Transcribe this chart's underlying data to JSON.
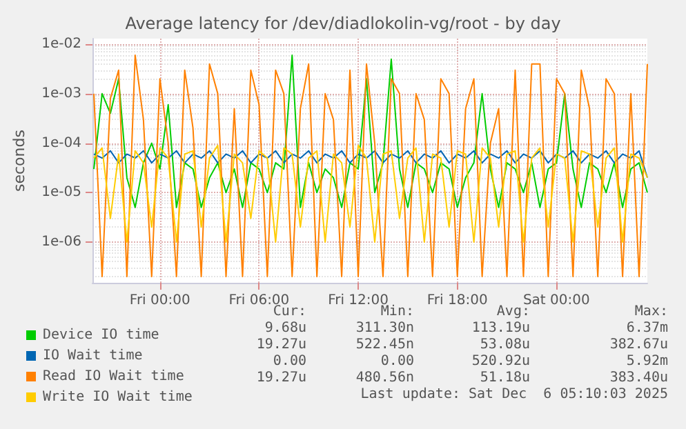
{
  "chart_data": {
    "type": "line",
    "title": "Average latency for /dev/diadlokolin-vg/root - by day",
    "ylabel": "seconds",
    "log": "y",
    "grid": true,
    "legend": "bottom",
    "marker": "none",
    "line_style": "solid",
    "x": [
      "2025-12-04T20:00",
      "2025-12-04T20:30",
      "2025-12-04T21:00",
      "2025-12-04T21:30",
      "2025-12-04T22:00",
      "2025-12-04T22:30",
      "2025-12-04T23:00",
      "2025-12-04T23:30",
      "2025-12-05T00:00",
      "2025-12-05T00:30",
      "2025-12-05T01:00",
      "2025-12-05T01:30",
      "2025-12-05T02:00",
      "2025-12-05T02:30",
      "2025-12-05T03:00",
      "2025-12-05T03:30",
      "2025-12-05T04:00",
      "2025-12-05T04:30",
      "2025-12-05T05:00",
      "2025-12-05T05:30",
      "2025-12-05T06:00",
      "2025-12-05T06:30",
      "2025-12-05T07:00",
      "2025-12-05T07:30",
      "2025-12-05T08:00",
      "2025-12-05T08:30",
      "2025-12-05T09:00",
      "2025-12-05T09:30",
      "2025-12-05T10:00",
      "2025-12-05T10:30",
      "2025-12-05T11:00",
      "2025-12-05T11:30",
      "2025-12-05T12:00",
      "2025-12-05T12:30",
      "2025-12-05T13:00",
      "2025-12-05T13:30",
      "2025-12-05T14:00",
      "2025-12-05T14:30",
      "2025-12-05T15:00",
      "2025-12-05T15:30",
      "2025-12-05T16:00",
      "2025-12-05T16:30",
      "2025-12-05T17:00",
      "2025-12-05T17:30",
      "2025-12-05T18:00",
      "2025-12-05T18:30",
      "2025-12-05T19:00",
      "2025-12-05T19:30",
      "2025-12-05T20:00",
      "2025-12-05T20:30",
      "2025-12-05T21:00",
      "2025-12-05T21:30",
      "2025-12-05T22:00",
      "2025-12-05T22:30",
      "2025-12-05T23:00",
      "2025-12-05T23:30",
      "2025-12-06T00:00",
      "2025-12-06T00:30",
      "2025-12-06T01:00",
      "2025-12-06T01:30",
      "2025-12-06T02:00",
      "2025-12-06T02:30",
      "2025-12-06T03:00",
      "2025-12-06T03:30",
      "2025-12-06T04:00",
      "2025-12-06T04:30",
      "2025-12-06T05:00",
      "2025-12-06T05:30"
    ],
    "xlim": [
      "2025-12-04T19:55",
      "2025-12-06T05:30"
    ],
    "xticks": [
      {
        "value": "2025-12-05T00:00",
        "label": "Fri 00:00"
      },
      {
        "value": "2025-12-05T06:00",
        "label": "Fri 06:00"
      },
      {
        "value": "2025-12-05T12:00",
        "label": "Fri 12:00"
      },
      {
        "value": "2025-12-05T18:00",
        "label": "Fri 18:00"
      },
      {
        "value": "2025-12-06T00:00",
        "label": "Sat 00:00"
      }
    ],
    "ylim": [
      1.5e-07,
      0.013
    ],
    "yticks": [
      {
        "value": 1e-06,
        "label": "1e-06"
      },
      {
        "value": 1e-05,
        "label": "1e-05"
      },
      {
        "value": 0.0001,
        "label": "1e-04"
      },
      {
        "value": 0.001,
        "label": "1e-03"
      },
      {
        "value": 0.01,
        "label": "1e-02"
      }
    ],
    "series": [
      {
        "name": "Device IO time",
        "color": "#00cc00",
        "values": [
          3e-05,
          0.001,
          0.0004,
          0.002,
          2e-05,
          5e-06,
          4e-05,
          0.0001,
          3e-05,
          0.0006,
          5e-06,
          4e-05,
          3e-05,
          5e-06,
          2e-05,
          4e-05,
          1e-05,
          3e-05,
          5e-06,
          4e-05,
          3e-05,
          1e-05,
          4e-05,
          3e-05,
          0.006,
          5e-06,
          4e-05,
          1e-05,
          3e-05,
          2e-05,
          5e-06,
          4e-05,
          3e-05,
          0.002,
          1e-05,
          4e-05,
          0.005,
          3e-05,
          5e-06,
          4e-05,
          3e-05,
          1e-05,
          4e-05,
          3e-05,
          5e-06,
          2e-05,
          4e-05,
          0.001,
          3e-05,
          5e-06,
          4e-05,
          3e-05,
          1e-05,
          4e-05,
          5e-06,
          3e-05,
          4e-05,
          0.001,
          3e-05,
          5e-06,
          4e-05,
          3e-05,
          1e-05,
          4e-05,
          5e-06,
          3e-05,
          4e-05,
          1e-05
        ]
      },
      {
        "name": "IO Wait time",
        "color": "#0066b3",
        "values": [
          6e-05,
          5e-05,
          7e-05,
          4e-05,
          6e-05,
          5e-05,
          7e-05,
          4e-05,
          6e-05,
          5e-05,
          7e-05,
          4e-05,
          6e-05,
          5e-05,
          7e-05,
          4e-05,
          6e-05,
          5e-05,
          7e-05,
          4e-05,
          6e-05,
          5e-05,
          7e-05,
          4e-05,
          6e-05,
          5e-05,
          7e-05,
          4e-05,
          6e-05,
          5e-05,
          7e-05,
          4e-05,
          6e-05,
          5e-05,
          7e-05,
          4e-05,
          6e-05,
          5e-05,
          7e-05,
          4e-05,
          6e-05,
          5e-05,
          7e-05,
          4e-05,
          6e-05,
          5e-05,
          7e-05,
          4e-05,
          6e-05,
          5e-05,
          7e-05,
          4e-05,
          6e-05,
          5e-05,
          7e-05,
          4e-05,
          6e-05,
          5e-05,
          7e-05,
          4e-05,
          6e-05,
          5e-05,
          7e-05,
          4e-05,
          6e-05,
          5e-05,
          7e-05,
          2e-05
        ]
      },
      {
        "name": "Read IO Wait time",
        "color": "#ff8000",
        "values": [
          0.001,
          2e-07,
          0.0008,
          0.003,
          2e-07,
          0.006,
          0.0003,
          2e-07,
          0.002,
          0.0001,
          2e-07,
          0.003,
          0.0002,
          2e-07,
          0.004,
          0.001,
          2e-07,
          0.0005,
          2e-07,
          0.003,
          0.0006,
          2e-07,
          0.003,
          0.001,
          2e-07,
          0.0005,
          0.004,
          2e-07,
          0.001,
          0.0003,
          2e-07,
          0.003,
          2e-07,
          0.004,
          0.0001,
          2e-07,
          0.002,
          0.001,
          2e-07,
          0.001,
          0.0003,
          2e-07,
          0.002,
          0.001,
          2e-07,
          0.0005,
          0.002,
          2e-07,
          0.0001,
          0.0005,
          2e-07,
          0.003,
          2e-07,
          0.004,
          0.004,
          2e-07,
          0.002,
          0.001,
          2e-07,
          0.003,
          0.0005,
          2e-07,
          0.002,
          0.001,
          2e-07,
          0.001,
          2e-07,
          0.004
        ]
      },
      {
        "name": "Write IO Wait time",
        "color": "#ffcc00",
        "values": [
          5e-05,
          8e-05,
          3e-06,
          6e-05,
          1e-06,
          7e-05,
          4e-05,
          2e-06,
          8e-05,
          5e-05,
          1e-06,
          6e-05,
          7e-05,
          2e-06,
          5e-05,
          9e-05,
          1e-06,
          6e-05,
          4e-05,
          3e-06,
          7e-05,
          5e-05,
          1e-06,
          8e-05,
          6e-05,
          2e-06,
          5e-05,
          7e-05,
          1e-06,
          6e-05,
          4e-05,
          2e-06,
          9e-05,
          5e-05,
          1e-06,
          6e-05,
          7e-05,
          3e-06,
          5e-05,
          8e-05,
          1e-06,
          6e-05,
          5e-05,
          2e-06,
          7e-05,
          6e-05,
          1e-06,
          8e-05,
          5e-05,
          2e-06,
          6e-05,
          7e-05,
          1e-06,
          5e-05,
          8e-05,
          2e-06,
          6e-05,
          5e-05,
          1e-06,
          7e-05,
          6e-05,
          2e-06,
          5e-05,
          8e-05,
          1e-06,
          6e-05,
          5e-05,
          2e-05
        ]
      }
    ],
    "annotations": [
      "Cur:",
      "Min:",
      "Avg:",
      "Max:",
      "9.68u",
      "311.30n",
      "113.19u",
      "6.37m",
      "19.27u",
      "522.45n",
      "53.08u",
      "382.67u",
      "0.00",
      "0.00",
      "520.92u",
      "5.92m",
      "19.27u",
      "480.56n",
      "51.18u",
      "383.40u",
      "Last update: Sat Dec  6 05:10:03 2025"
    ]
  }
}
